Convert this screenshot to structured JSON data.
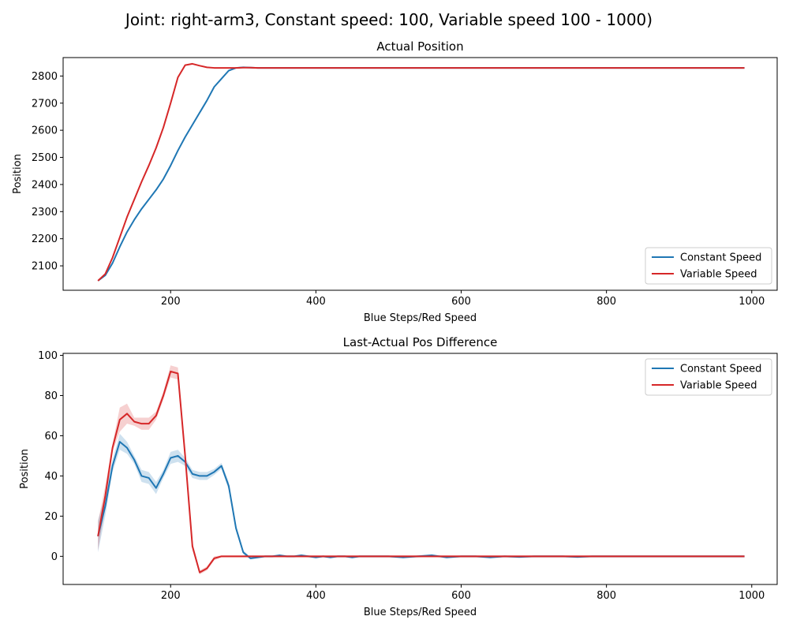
{
  "figure_title": "Joint: right-arm3, Constant speed: 100, Variable speed 100 - 1000)",
  "colors": {
    "constant": "#1f77b4",
    "variable": "#d62728"
  },
  "chart_data": [
    {
      "type": "line",
      "title": "Actual Position",
      "xlabel": "Blue Steps/Red Speed",
      "ylabel": "Position",
      "xlim": [
        52,
        1035
      ],
      "ylim": [
        2010,
        2868
      ],
      "xticks": [
        200,
        400,
        600,
        800,
        1000
      ],
      "yticks": [
        2100,
        2200,
        2300,
        2400,
        2500,
        2600,
        2700,
        2800
      ],
      "legend_position": "lower right",
      "x": [
        100,
        110,
        120,
        130,
        140,
        150,
        160,
        170,
        180,
        190,
        200,
        210,
        220,
        230,
        240,
        250,
        260,
        270,
        280,
        290,
        300,
        310,
        320,
        330,
        340,
        350,
        360,
        370,
        380,
        390,
        400,
        450,
        500,
        550,
        600,
        650,
        700,
        750,
        800,
        850,
        900,
        950,
        990
      ],
      "series": [
        {
          "name": "Constant Speed",
          "color": "#1f77b4",
          "values": [
            2045,
            2065,
            2110,
            2170,
            2225,
            2270,
            2310,
            2345,
            2380,
            2420,
            2470,
            2525,
            2575,
            2620,
            2665,
            2710,
            2760,
            2790,
            2820,
            2830,
            2832,
            2831,
            2830,
            2830,
            2830,
            2830,
            2830,
            2830,
            2830,
            2830,
            2830,
            2830,
            2830,
            2830,
            2830,
            2830,
            2830,
            2830,
            2830,
            2830,
            2830,
            2830,
            2830
          ]
        },
        {
          "name": "Variable Speed",
          "color": "#d62728",
          "values": [
            2045,
            2070,
            2130,
            2205,
            2280,
            2345,
            2410,
            2470,
            2535,
            2610,
            2700,
            2795,
            2840,
            2845,
            2838,
            2832,
            2830,
            2830,
            2830,
            2830,
            2831,
            2831,
            2830,
            2830,
            2830,
            2830,
            2830,
            2830,
            2830,
            2830,
            2830,
            2830,
            2830,
            2830,
            2830,
            2830,
            2830,
            2830,
            2830,
            2830,
            2830,
            2830,
            2830
          ]
        }
      ]
    },
    {
      "type": "line",
      "title": "Last-Actual Pos Difference",
      "xlabel": "Blue Steps/Red Speed",
      "ylabel": "Position",
      "xlim": [
        52,
        1035
      ],
      "ylim": [
        -14,
        101
      ],
      "xticks": [
        200,
        400,
        600,
        800,
        1000
      ],
      "yticks": [
        0,
        20,
        40,
        60,
        80,
        100
      ],
      "legend_position": "upper right",
      "x": [
        100,
        110,
        120,
        130,
        140,
        150,
        160,
        170,
        180,
        190,
        200,
        210,
        220,
        230,
        240,
        250,
        260,
        270,
        280,
        290,
        300,
        310,
        320,
        330,
        340,
        350,
        360,
        370,
        380,
        390,
        400,
        410,
        420,
        430,
        440,
        450,
        460,
        470,
        480,
        490,
        500,
        520,
        540,
        560,
        580,
        600,
        620,
        640,
        660,
        680,
        700,
        720,
        740,
        760,
        780,
        800,
        820,
        840,
        860,
        880,
        900,
        920,
        940,
        960,
        980,
        990
      ],
      "series": [
        {
          "name": "Constant Speed",
          "color": "#1f77b4",
          "values": [
            10,
            25,
            45,
            57,
            54,
            48,
            40,
            39,
            34,
            41,
            49,
            50,
            47,
            41,
            40,
            40,
            42,
            45,
            35,
            14,
            2,
            -1,
            -0.5,
            0,
            0,
            0.5,
            0,
            0,
            0.5,
            0,
            -0.5,
            0,
            -0.5,
            0,
            0,
            -0.5,
            0,
            0,
            0,
            0,
            0,
            -0.5,
            0,
            0.5,
            -0.5,
            0,
            0,
            -0.5,
            0,
            -0.3,
            0,
            0,
            0,
            -0.3,
            0,
            0,
            0,
            0,
            0,
            0,
            0,
            0,
            0,
            0,
            0,
            0
          ],
          "band_halfwidth": [
            8,
            5,
            3,
            4,
            3,
            2,
            3,
            3,
            3,
            2,
            3,
            3,
            2,
            2,
            2,
            2,
            1.5,
            1.5,
            2,
            1.5,
            1,
            0.5,
            0.5,
            0.5,
            0.5,
            0.5,
            0.5,
            0.5,
            0.5,
            0.5,
            0.5,
            0.5,
            0.5,
            0.5,
            0.5,
            0.5,
            0.5,
            0.5,
            0.5,
            0.5,
            0.5,
            0.5,
            0.5,
            0.5,
            0.5,
            0.5,
            0.5,
            0.5,
            0.5,
            0.5,
            0.5,
            0.5,
            0.5,
            0.5,
            0.5,
            0.5,
            0.5,
            0.5,
            0.5,
            0.5,
            0.5,
            0.5,
            0.5,
            0.5,
            0.5,
            0.5
          ]
        },
        {
          "name": "Variable Speed",
          "color": "#d62728",
          "values": [
            10,
            30,
            54,
            68,
            71,
            67,
            66,
            66,
            70,
            80,
            92,
            91,
            50,
            5,
            -8,
            -6,
            -1,
            0,
            0,
            0,
            0,
            0,
            0,
            0,
            0,
            0,
            0,
            0,
            0,
            0,
            0,
            0,
            0,
            0,
            0,
            0,
            0,
            0,
            0,
            0,
            0,
            0,
            0,
            0,
            0,
            0,
            0,
            0,
            0,
            0,
            0,
            0,
            0,
            0,
            0,
            0,
            0,
            0,
            0,
            0,
            0,
            0,
            0,
            0,
            0,
            0
          ],
          "band_halfwidth": [
            7,
            5,
            2,
            6,
            5,
            2,
            3,
            3,
            2,
            2,
            3,
            3,
            3,
            2,
            1,
            1,
            1,
            0.5,
            0.5,
            0.5,
            0.5,
            0.5,
            0.5,
            0.5,
            0.5,
            0.5,
            0.5,
            0.5,
            0.5,
            0.5,
            0.5,
            0.5,
            0.5,
            0.5,
            0.5,
            0.5,
            0.5,
            0.5,
            0.5,
            0.5,
            0.5,
            0.5,
            0.5,
            0.5,
            0.5,
            0.5,
            0.5,
            0.5,
            0.5,
            0.5,
            0.5,
            0.5,
            0.5,
            0.5,
            0.5,
            0.5,
            0.5,
            0.5,
            0.5,
            0.5,
            0.5,
            0.5,
            0.5,
            0.5,
            0.5,
            0.5
          ]
        }
      ]
    }
  ]
}
